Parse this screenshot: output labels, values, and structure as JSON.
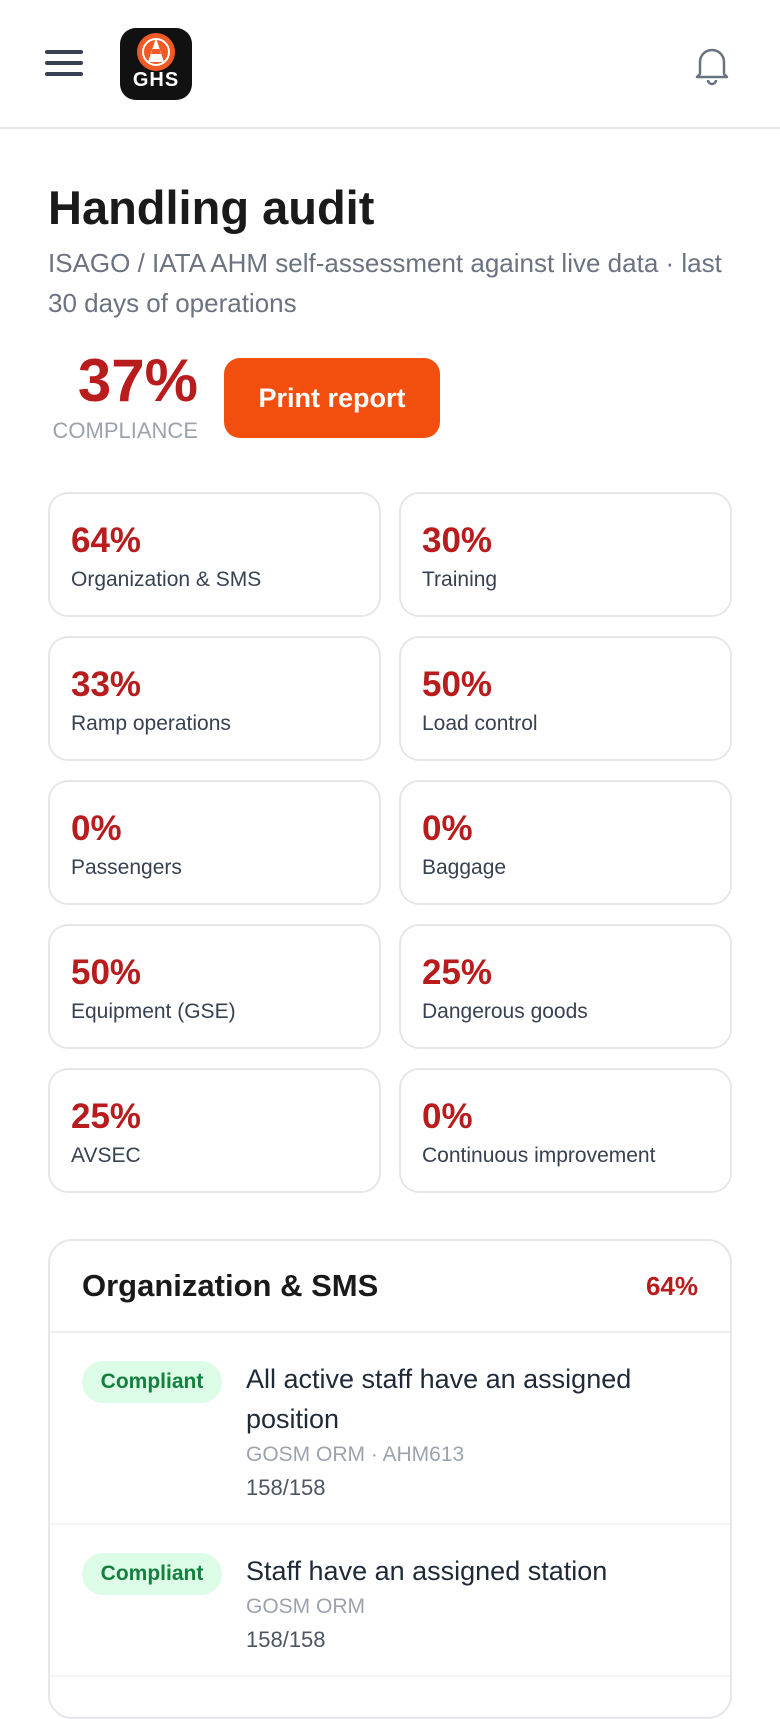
{
  "header": {
    "logo_text": "GHS"
  },
  "page": {
    "title": "Handling audit",
    "subtitle": "ISAGO / IATA AHM self-assessment against live data · last 30 days of operations",
    "compliance": {
      "value": "37%",
      "label": "COMPLIANCE"
    },
    "print_button": "Print report"
  },
  "categories": [
    {
      "value": "64%",
      "label": "Organization & SMS"
    },
    {
      "value": "30%",
      "label": "Training"
    },
    {
      "value": "33%",
      "label": "Ramp operations"
    },
    {
      "value": "50%",
      "label": "Load control"
    },
    {
      "value": "0%",
      "label": "Passengers"
    },
    {
      "value": "0%",
      "label": "Baggage"
    },
    {
      "value": "50%",
      "label": "Equipment (GSE)"
    },
    {
      "value": "25%",
      "label": "Dangerous goods"
    },
    {
      "value": "25%",
      "label": "AVSEC"
    },
    {
      "value": "0%",
      "label": "Continuous improvement"
    }
  ],
  "section": {
    "title": "Organization & SMS",
    "value": "64%",
    "items": [
      {
        "status": "Compliant",
        "title": "All active staff have an assigned position",
        "source": "GOSM ORM · AHM613",
        "count": "158/158"
      },
      {
        "status": "Compliant",
        "title": "Staff have an assigned station",
        "source": "GOSM ORM",
        "count": "158/158"
      }
    ]
  }
}
